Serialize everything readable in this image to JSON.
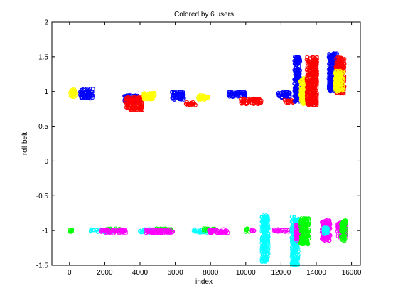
{
  "chart_data": {
    "type": "scatter",
    "title": "Colored by 6 users",
    "xlabel": "index",
    "ylabel": "roll belt",
    "xlim": [
      -1000,
      16500
    ],
    "ylim": [
      -1.5,
      2
    ],
    "xticks": [
      0,
      2000,
      4000,
      6000,
      8000,
      10000,
      12000,
      14000,
      16000
    ],
    "yticks": [
      -1.5,
      -1,
      -0.5,
      0,
      0.5,
      1,
      1.5,
      2
    ],
    "xtick_labels": [
      "0",
      "2000",
      "4000",
      "6000",
      "8000",
      "10000",
      "12000",
      "14000",
      "16000"
    ],
    "ytick_labels": [
      "-1.5",
      "-1",
      "-0.5",
      "0",
      "0.5",
      "1",
      "1.5",
      "2"
    ],
    "grid": false,
    "legend": "none",
    "marker": "open-circle",
    "colors": {
      "blue": "#0000ff",
      "red": "#ff0000",
      "yellow": "#ffff00",
      "cyan": "#00ffff",
      "magenta": "#ff00ff",
      "green": "#00ff00"
    },
    "clusters": [
      {
        "color": "yellow",
        "x": [
          0,
          400
        ],
        "y": [
          0.92,
          1.03
        ]
      },
      {
        "color": "blue",
        "x": [
          600,
          1350
        ],
        "y": [
          0.9,
          1.04
        ]
      },
      {
        "color": "blue",
        "x": [
          3100,
          4000
        ],
        "y": [
          0.85,
          0.95
        ]
      },
      {
        "color": "red",
        "x": [
          3150,
          4150
        ],
        "y": [
          0.73,
          0.92
        ]
      },
      {
        "color": "yellow",
        "x": [
          4200,
          4900
        ],
        "y": [
          0.88,
          0.98
        ]
      },
      {
        "color": "blue",
        "x": [
          5800,
          6500
        ],
        "y": [
          0.88,
          1.0
        ]
      },
      {
        "color": "red",
        "x": [
          6600,
          7200
        ],
        "y": [
          0.8,
          0.85
        ]
      },
      {
        "color": "yellow",
        "x": [
          7300,
          7900
        ],
        "y": [
          0.88,
          0.95
        ]
      },
      {
        "color": "blue",
        "x": [
          9000,
          10000
        ],
        "y": [
          0.92,
          1.0
        ]
      },
      {
        "color": "red",
        "x": [
          9700,
          10900
        ],
        "y": [
          0.82,
          0.9
        ]
      },
      {
        "color": "blue",
        "x": [
          11800,
          12500
        ],
        "y": [
          0.9,
          1.0
        ]
      },
      {
        "color": "red",
        "x": [
          12200,
          12800
        ],
        "y": [
          0.83,
          0.88
        ]
      },
      {
        "color": "blue",
        "x": [
          12750,
          13100
        ],
        "y": [
          0.85,
          1.5
        ]
      },
      {
        "color": "yellow",
        "x": [
          13100,
          13450
        ],
        "y": [
          0.82,
          1.2
        ]
      },
      {
        "color": "red",
        "x": [
          13450,
          14050
        ],
        "y": [
          0.8,
          1.5
        ]
      },
      {
        "color": "blue",
        "x": [
          14700,
          15200
        ],
        "y": [
          1.0,
          1.55
        ]
      },
      {
        "color": "red",
        "x": [
          15100,
          15600
        ],
        "y": [
          0.97,
          1.5
        ]
      },
      {
        "color": "yellow",
        "x": [
          15050,
          15550
        ],
        "y": [
          1.0,
          1.3
        ]
      },
      {
        "color": "green",
        "x": [
          0,
          150
        ],
        "y": [
          -1.02,
          -0.98
        ]
      },
      {
        "color": "cyan",
        "x": [
          1200,
          2500
        ],
        "y": [
          -1.03,
          -0.98
        ]
      },
      {
        "color": "green",
        "x": [
          2100,
          2900
        ],
        "y": [
          -1.02,
          -0.97
        ]
      },
      {
        "color": "magenta",
        "x": [
          1800,
          3200
        ],
        "y": [
          -1.04,
          -0.98
        ]
      },
      {
        "color": "cyan",
        "x": [
          4000,
          5300
        ],
        "y": [
          -1.03,
          -0.98
        ]
      },
      {
        "color": "green",
        "x": [
          4900,
          5800
        ],
        "y": [
          -1.02,
          -0.97
        ]
      },
      {
        "color": "magenta",
        "x": [
          4300,
          5900
        ],
        "y": [
          -1.04,
          -0.98
        ]
      },
      {
        "color": "cyan",
        "x": [
          7000,
          7900
        ],
        "y": [
          -1.03,
          -0.98
        ]
      },
      {
        "color": "green",
        "x": [
          7600,
          8300
        ],
        "y": [
          -1.02,
          -0.97
        ]
      },
      {
        "color": "magenta",
        "x": [
          7900,
          9000
        ],
        "y": [
          -1.04,
          -0.98
        ]
      },
      {
        "color": "green",
        "x": [
          10000,
          10200
        ],
        "y": [
          -1.02,
          -0.97
        ]
      },
      {
        "color": "magenta",
        "x": [
          10300,
          10500
        ],
        "y": [
          -1.04,
          -0.98
        ]
      },
      {
        "color": "cyan",
        "x": [
          10900,
          11300
        ],
        "y": [
          -1.45,
          -0.78
        ]
      },
      {
        "color": "magenta",
        "x": [
          11600,
          12800
        ],
        "y": [
          -1.02,
          -0.98
        ]
      },
      {
        "color": "cyan",
        "x": [
          12600,
          13000
        ],
        "y": [
          -1.5,
          -0.8
        ]
      },
      {
        "color": "magenta",
        "x": [
          12800,
          13200
        ],
        "y": [
          -1.15,
          -0.92
        ]
      },
      {
        "color": "green",
        "x": [
          13100,
          13600
        ],
        "y": [
          -1.2,
          -0.82
        ]
      },
      {
        "color": "magenta",
        "x": [
          14300,
          14800
        ],
        "y": [
          -1.15,
          -0.85
        ]
      },
      {
        "color": "cyan",
        "x": [
          14400,
          14700
        ],
        "y": [
          -1.05,
          -0.95
        ]
      },
      {
        "color": "magenta",
        "x": [
          15200,
          15700
        ],
        "y": [
          -1.1,
          -0.88
        ]
      },
      {
        "color": "green",
        "x": [
          15400,
          15700
        ],
        "y": [
          -1.15,
          -0.85
        ]
      }
    ]
  }
}
